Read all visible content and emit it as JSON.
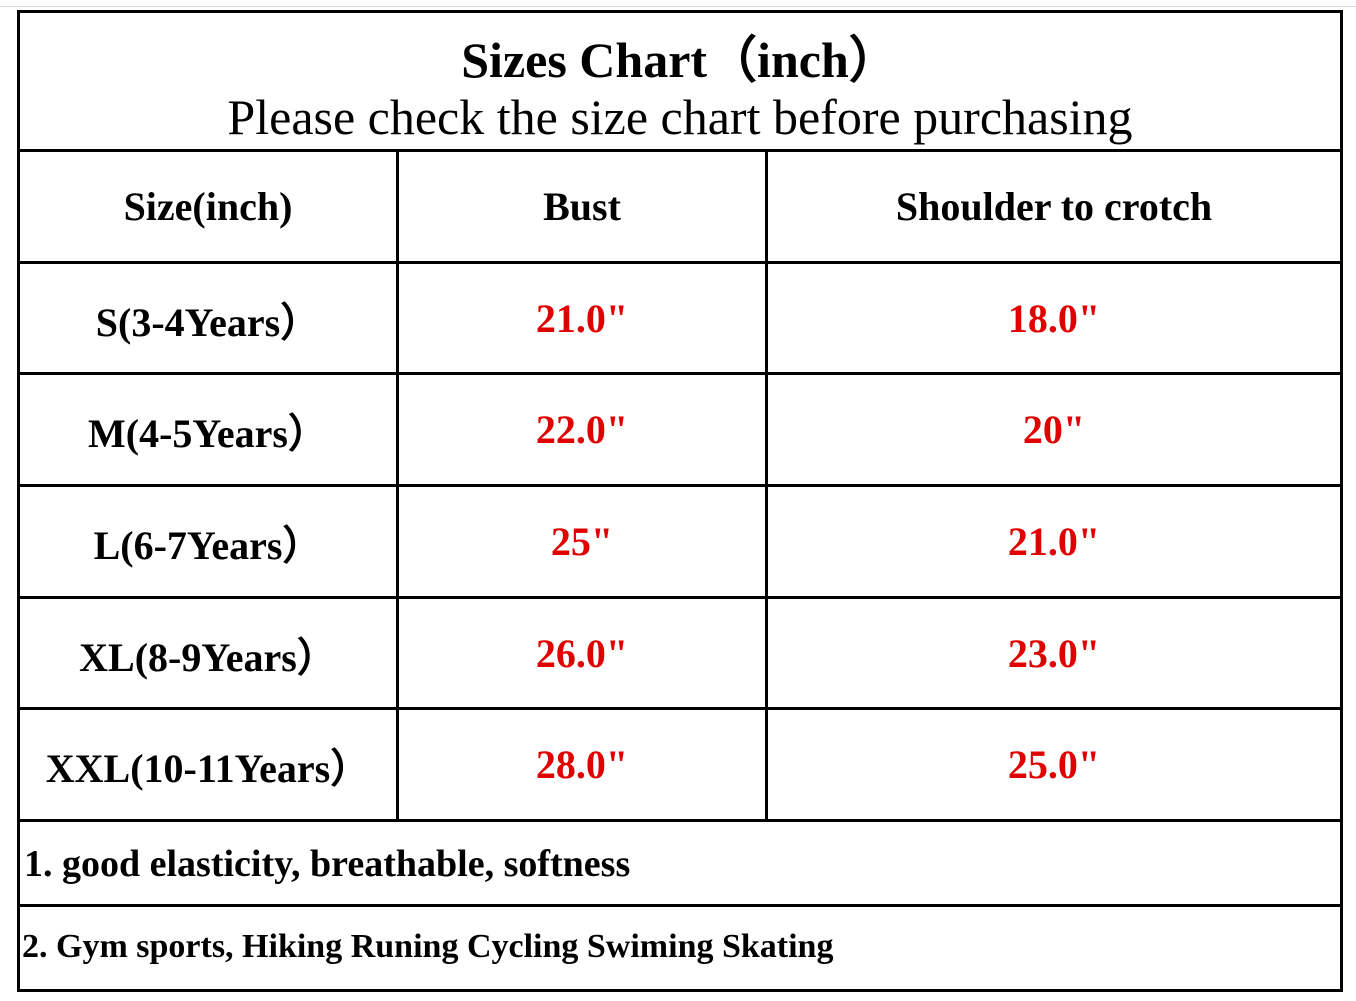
{
  "header": {
    "title": "Sizes Chart（inch）",
    "subtitle": "Please check the size chart before purchasing"
  },
  "table": {
    "columns": [
      "Size(inch)",
      "Bust",
      "Shoulder to crotch"
    ],
    "rows": [
      [
        "S(3-4Years）",
        "21.0\"",
        "18.0\""
      ],
      [
        "M(4-5Years）",
        "22.0\"",
        "20\""
      ],
      [
        "L(6-7Years）",
        "25\"",
        "21.0\""
      ],
      [
        "XL(8-9Years）",
        "26.0\"",
        "23.0\""
      ],
      [
        "XXL(10-11Years）",
        "28.0\"",
        "25.0\""
      ]
    ]
  },
  "notes": [
    "1. good elasticity, breathable, softness",
    "2. Gym sports, Hiking Runing Cycling Swiming Skating"
  ]
}
